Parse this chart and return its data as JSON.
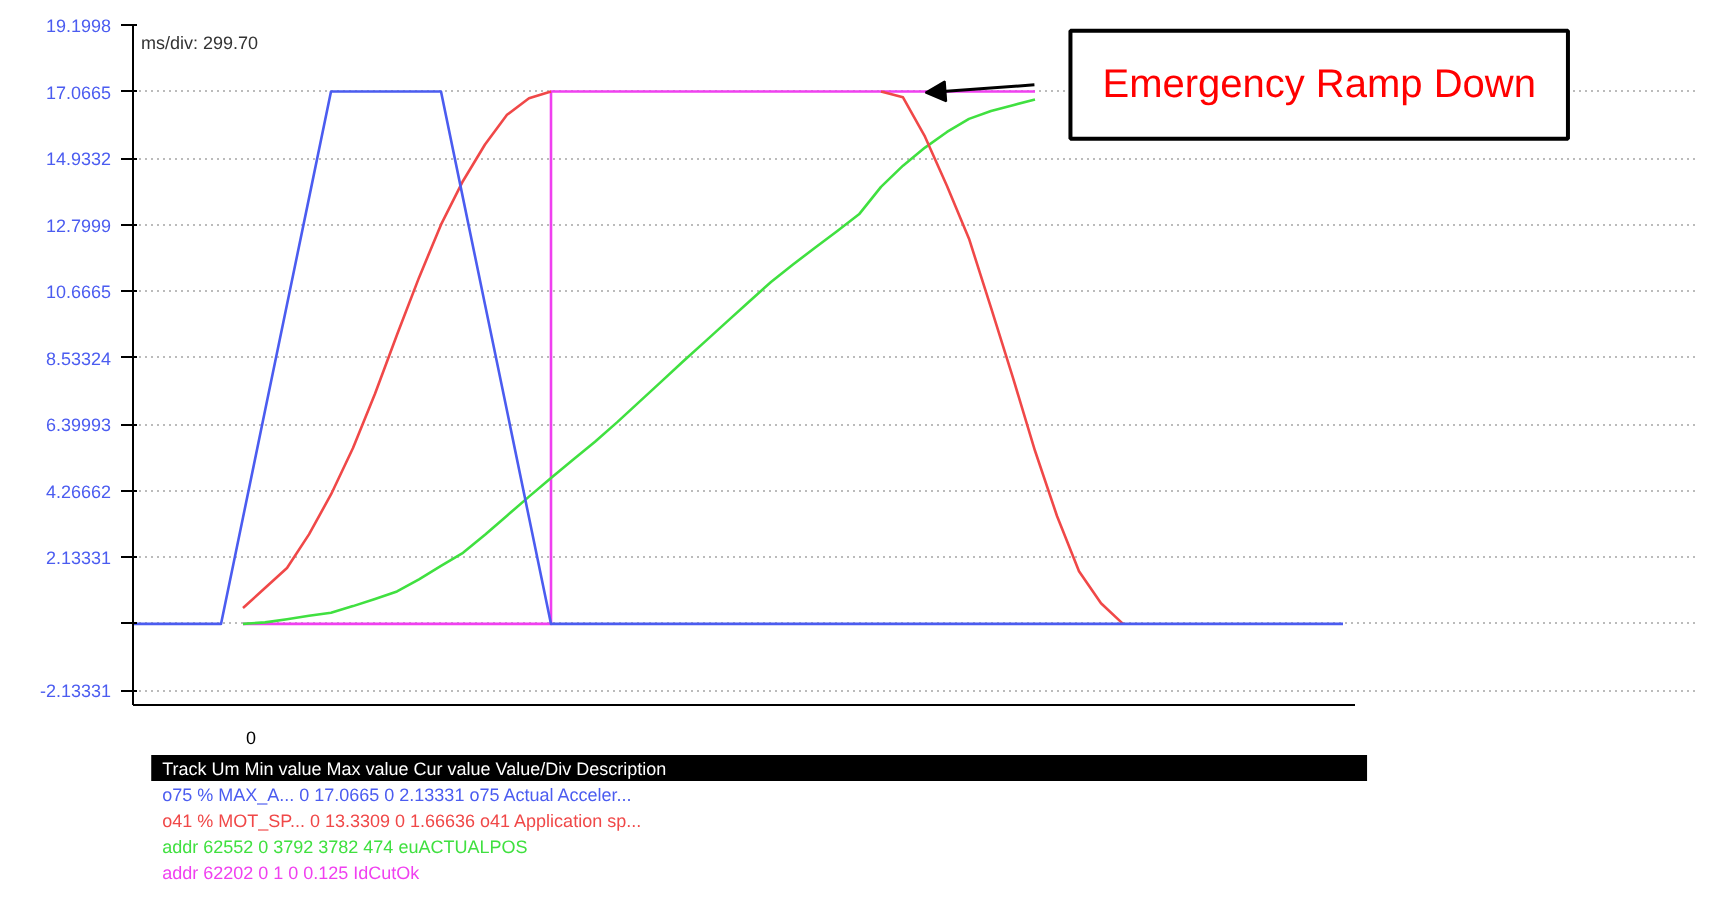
{
  "chart_data": {
    "type": "line",
    "categories": [
      null,
      null,
      null,
      null,
      null,
      null,
      null,
      null,
      null,
      null,
      null,
      null,
      null,
      null,
      null,
      null,
      null,
      null,
      null,
      null,
      null,
      null,
      null,
      null,
      null,
      null,
      null,
      null,
      null,
      null,
      null,
      null,
      null,
      null,
      null,
      null,
      null,
      null,
      null,
      null,
      null,
      null,
      null,
      null,
      null,
      null,
      null,
      null,
      null,
      null,
      null,
      null,
      null,
      null,
      null,
      null
    ],
    "series": [
      {
        "color": "#4b5cf0",
        "values": [
          0,
          0,
          0,
          0,
          0,
          3.41,
          6.83,
          10.24,
          13.65,
          17.07,
          17.07,
          17.07,
          17.07,
          17.07,
          17.07,
          13.65,
          10.24,
          6.83,
          3.41,
          0,
          0,
          0,
          0,
          0,
          0,
          0,
          0,
          0,
          0,
          0,
          0,
          0,
          0,
          0,
          0,
          0,
          0,
          0,
          0,
          0,
          0,
          0,
          0,
          0,
          0,
          0,
          0,
          0,
          0,
          0,
          0,
          0,
          0,
          0,
          0,
          0
        ]
      },
      {
        "color": "#f04848",
        "values": [
          null,
          null,
          null,
          null,
          null,
          0.51,
          1.15,
          1.79,
          2.87,
          4.15,
          5.64,
          7.38,
          9.27,
          11.1,
          12.8,
          14.2,
          15.37,
          16.32,
          16.85,
          17.07,
          null,
          null,
          null,
          null,
          null,
          null,
          null,
          null,
          null,
          null,
          null,
          null,
          null,
          null,
          17.07,
          16.88,
          15.62,
          14.04,
          12.35,
          10.14,
          7.89,
          5.55,
          3.46,
          1.69,
          0.66,
          0,
          null,
          null,
          null,
          null,
          null,
          null,
          null,
          null,
          null,
          null
        ]
      },
      {
        "color": "#40e040",
        "values": [
          null,
          null,
          null,
          null,
          null,
          0,
          0.05,
          0.15,
          0.26,
          0.36,
          0.57,
          0.8,
          1.04,
          1.43,
          1.86,
          2.28,
          2.86,
          3.47,
          4.08,
          4.68,
          5.26,
          5.84,
          6.46,
          7.11,
          7.76,
          8.41,
          9.05,
          9.69,
          10.33,
          10.96,
          11.52,
          12.06,
          12.59,
          13.13,
          14.01,
          14.69,
          15.27,
          15.77,
          16.19,
          16.44,
          16.63,
          16.81,
          null,
          null,
          null,
          null,
          null,
          null,
          null,
          null,
          null,
          null,
          null,
          null,
          null,
          null
        ]
      },
      {
        "color": "#f040f0",
        "type": "step",
        "values": [
          null,
          null,
          null,
          null,
          null,
          0,
          0,
          0,
          0,
          0,
          0,
          0,
          0,
          0,
          0,
          0,
          0,
          0,
          0,
          17.07,
          17.07,
          17.07,
          17.07,
          17.07,
          17.07,
          17.07,
          17.07,
          17.07,
          17.07,
          17.07,
          17.07,
          17.07,
          17.07,
          17.07,
          17.07,
          17.07,
          17.07,
          17.07,
          17.07,
          17.07,
          17.07,
          17.07,
          null,
          null,
          null,
          null,
          null,
          null,
          null,
          null,
          null,
          null,
          null,
          null,
          null,
          null
        ]
      }
    ],
    "ylim": [
      -2.6,
      19.1998
    ],
    "yticks": [
      {
        "value": -2.13331,
        "label": "-2.13331"
      },
      {
        "value": 0,
        "label": null
      },
      {
        "value": 2.13331,
        "label": "2.13331"
      },
      {
        "value": 4.26662,
        "label": "4.26662"
      },
      {
        "value": 6.39993,
        "label": "6.39993"
      },
      {
        "value": 8.53324,
        "label": "8.53324"
      },
      {
        "value": 10.6665,
        "label": "10.6665"
      },
      {
        "value": 12.7999,
        "label": "12.7999"
      },
      {
        "value": 14.9332,
        "label": "14.9332"
      },
      {
        "value": 17.0665,
        "label": "17.0665"
      },
      {
        "value": 19.1998,
        "label": "19.1998"
      }
    ],
    "grid": "y",
    "annotations": [
      "Emergency Ramp Down",
      "ms/div: 299.70",
      "0",
      "Track  Um  Min value  Max value  Cur value  Value/Div  Description",
      "o75  % MAX_A...  0  17.0665  0  2.13331  o75 Actual Acceler...",
      "o41  % MOT_SP...  0  13.3309  0  1.66636  o41 Application sp...",
      "addr 62552  0  3792  3782  474  euACTUALPOS",
      "addr 62202  0  1  0  0.125  IdCutOk"
    ]
  }
}
